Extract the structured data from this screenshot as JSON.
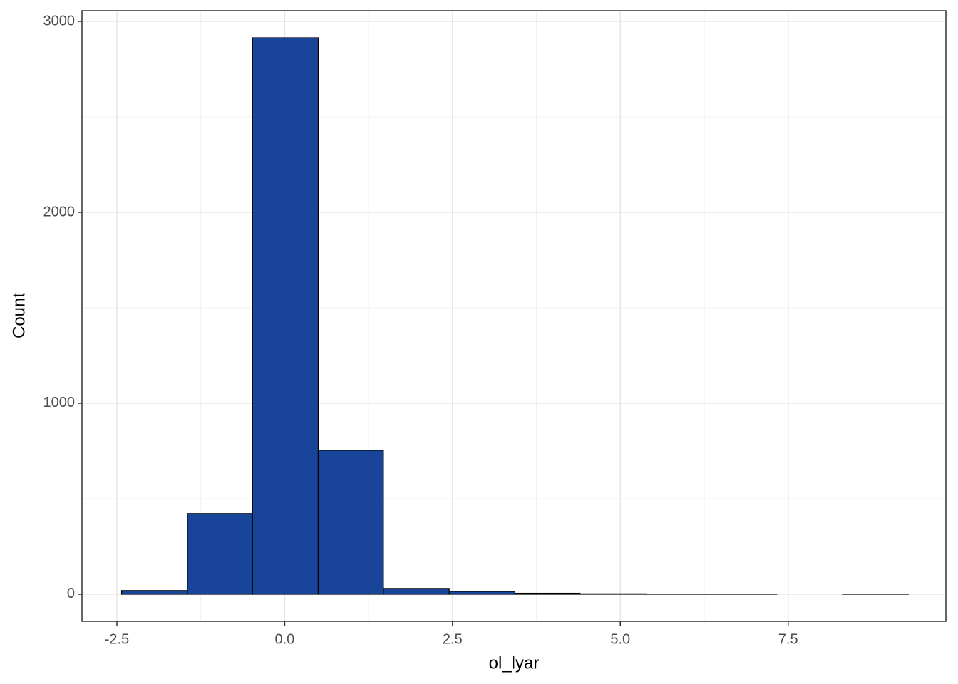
{
  "chart_data": {
    "type": "histogram",
    "x_label": "ol_lyar",
    "y_label": "Count",
    "bins": [
      -2.43,
      -1.45,
      -0.48,
      0.5,
      1.47,
      2.45,
      3.43,
      4.4,
      5.38,
      6.36,
      7.33,
      8.31,
      9.29
    ],
    "values": [
      19,
      422,
      2914,
      754,
      30,
      15,
      5,
      2,
      1,
      1,
      0,
      1
    ],
    "color": "#18449a",
    "edge_color": "#000000",
    "xlim": [
      -3.02,
      9.85
    ],
    "ylim": [
      -142,
      3056
    ],
    "xticks": [
      -2.5,
      {
        "value": 0,
        "label": "0.0"
      },
      2.5,
      {
        "value": 5,
        "label": "5.0"
      },
      7.5
    ],
    "yticks": [
      0,
      1000,
      2000,
      3000
    ],
    "x_minor_grid": [
      -1.25,
      1.25,
      3.75,
      6.25,
      8.75
    ],
    "y_minor_grid": [
      500,
      1500,
      2500
    ],
    "grid": true
  }
}
